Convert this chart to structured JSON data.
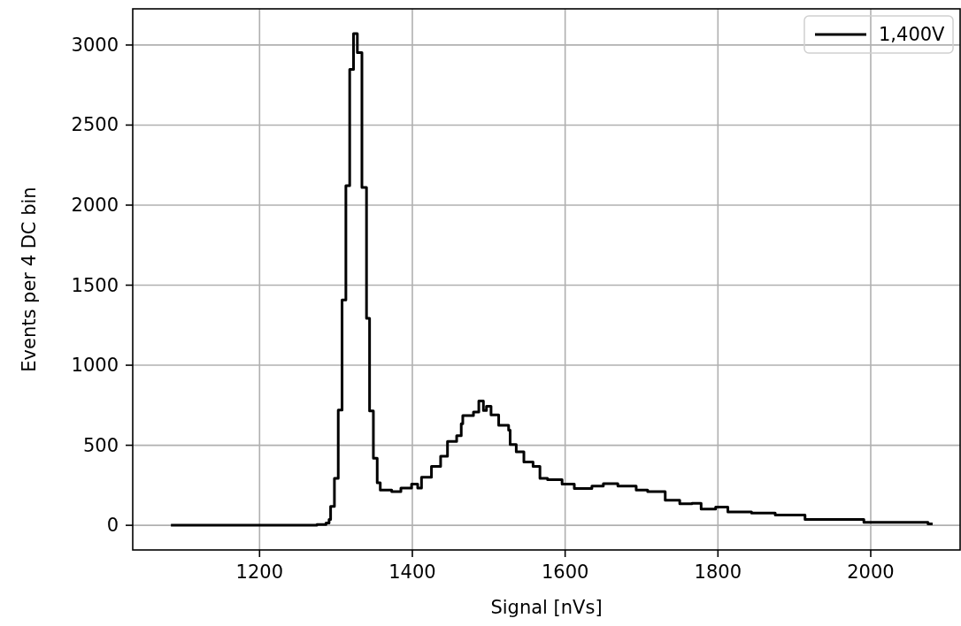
{
  "chart_data": {
    "type": "step",
    "xlabel": "Signal [nVs]",
    "ylabel": "Events per 4 DC bin",
    "xlim": [
      1034,
      2117
    ],
    "ylim": [
      -154,
      3226
    ],
    "xticks": [
      1200,
      1400,
      1600,
      1800,
      2000
    ],
    "yticks": [
      0,
      500,
      1000,
      1500,
      2000,
      2500,
      3000
    ],
    "grid": true,
    "legend": "top right",
    "line_style": "solid",
    "series": [
      {
        "name": "1,400V",
        "color": "#000000",
        "x": [
          1084,
          1275,
          1287,
          1291,
          1293,
          1298,
          1303,
          1308,
          1313,
          1318,
          1323,
          1328,
          1334,
          1340,
          1344,
          1349,
          1354,
          1358,
          1373,
          1385,
          1399,
          1407,
          1412,
          1425,
          1437,
          1446,
          1458,
          1464,
          1466,
          1480,
          1487,
          1493,
          1497,
          1503,
          1513,
          1526,
          1528,
          1536,
          1546,
          1558,
          1567,
          1577,
          1596,
          1612,
          1635,
          1650,
          1669,
          1693,
          1708,
          1731,
          1750,
          1766,
          1778,
          1797,
          1813,
          1844,
          1875,
          1914,
          1960,
          1991,
          2037,
          2075,
          2081
        ],
        "values": [
          0,
          5,
          15,
          37,
          118,
          293,
          720,
          1408,
          2122,
          2847,
          3072,
          2952,
          2111,
          1293,
          714,
          419,
          266,
          220,
          211,
          233,
          257,
          233,
          300,
          368,
          432,
          524,
          560,
          634,
          685,
          707,
          777,
          717,
          744,
          689,
          625,
          594,
          505,
          459,
          395,
          368,
          294,
          285,
          257,
          230,
          245,
          260,
          245,
          220,
          211,
          156,
          134,
          138,
          101,
          114,
          83,
          77,
          64,
          37,
          37,
          18,
          18,
          9,
          9
        ]
      }
    ]
  }
}
